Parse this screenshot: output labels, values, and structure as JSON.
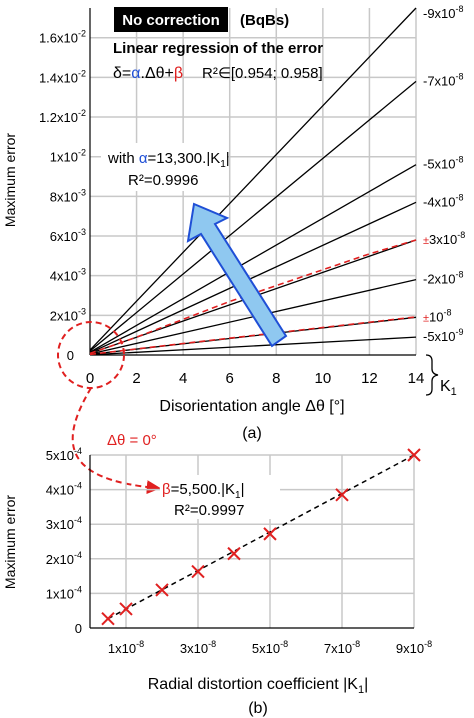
{
  "panel_a": {
    "chart_data": {
      "type": "line",
      "xlabel": "Disorientation angle Δθ [°]",
      "ylabel": "Maximum error",
      "xlim": [
        0,
        14
      ],
      "ylim": [
        0,
        0.0175
      ],
      "x_ticks": [
        {
          "value": 0,
          "label": "0"
        },
        {
          "value": 2,
          "label": "2"
        },
        {
          "value": 4,
          "label": "4"
        },
        {
          "value": 6,
          "label": "6"
        },
        {
          "value": 8,
          "label": "8"
        },
        {
          "value": 10,
          "label": "10"
        },
        {
          "value": 12,
          "label": "12"
        },
        {
          "value": 14,
          "label": "14"
        }
      ],
      "y_ticks": [
        {
          "value": 0,
          "base": "0",
          "exp": ""
        },
        {
          "value": 0.002,
          "base": "2x10",
          "exp": "-3"
        },
        {
          "value": 0.004,
          "base": "4x10",
          "exp": "-3"
        },
        {
          "value": 0.006,
          "base": "6x10",
          "exp": "-3"
        },
        {
          "value": 0.008,
          "base": "8x10",
          "exp": "-3"
        },
        {
          "value": 0.01,
          "base": "1x10",
          "exp": "-2"
        },
        {
          "value": 0.012,
          "base": "1.2x10",
          "exp": "-2"
        },
        {
          "value": 0.014,
          "base": "1.4x10",
          "exp": "-2"
        },
        {
          "value": 0.016,
          "base": "1.6x10",
          "exp": "-2"
        }
      ],
      "grid": true,
      "series": [
        {
          "label_base": "-9x10",
          "label_exp": "-8",
          "marker": "",
          "x": [
            0,
            14
          ],
          "y": [
            0.00025,
            0.0175
          ],
          "style": "solid"
        },
        {
          "label_base": "-7x10",
          "label_exp": "-8",
          "marker": "",
          "x": [
            0,
            14
          ],
          "y": [
            0.0002,
            0.0138
          ],
          "style": "solid"
        },
        {
          "label_base": "-5x10",
          "label_exp": "-8",
          "marker": "",
          "x": [
            0,
            14
          ],
          "y": [
            0.00014,
            0.0096
          ],
          "style": "solid"
        },
        {
          "label_base": "-4x10",
          "label_exp": "-8",
          "marker": "",
          "x": [
            0,
            14
          ],
          "y": [
            0.00011,
            0.0077
          ],
          "style": "solid"
        },
        {
          "label_base": "3x10",
          "label_exp": "-8",
          "marker": "±",
          "x": [
            0,
            14
          ],
          "y": [
            8e-05,
            0.0058
          ],
          "style": "solid"
        },
        {
          "label_base": "-2x10",
          "label_exp": "-8",
          "marker": "",
          "x": [
            0,
            14
          ],
          "y": [
            5e-05,
            0.0038
          ],
          "style": "solid"
        },
        {
          "label_base": "10",
          "label_exp": "-8",
          "marker": "±",
          "x": [
            0,
            14
          ],
          "y": [
            3e-05,
            0.0019
          ],
          "style": "solid"
        },
        {
          "label_base": "-5x10",
          "label_exp": "-9",
          "marker": "",
          "x": [
            0,
            14
          ],
          "y": [
            1e-05,
            0.0009
          ],
          "style": "solid"
        }
      ],
      "regression_curves": [
        {
          "x": [
            0,
            2,
            4,
            6,
            8,
            10,
            12,
            14
          ],
          "y": [
            8e-05,
            0.0009,
            0.0018,
            0.0027,
            0.0035,
            0.0043,
            0.0051,
            0.0058
          ]
        },
        {
          "x": [
            0,
            4,
            8,
            14
          ],
          "y": [
            3e-05,
            0.00058,
            0.00112,
            0.00192
          ]
        }
      ],
      "series_axis_label": "K",
      "series_axis_label_sub": "1"
    },
    "title_box": "No correction",
    "unit_note": "(BqBs)",
    "subtitle": "Linear regression of the error",
    "formula": {
      "delta": "δ=",
      "alpha": "α",
      "mid": ".Δθ+",
      "beta": "β",
      "r2": "R²∈[0.954; 0.958]"
    },
    "alpha_note": {
      "prefix": "with ",
      "alpha": "α",
      "rest": "=13,300.|K",
      "sub": "1",
      "end": "|",
      "r2": "R²=0.9996"
    },
    "caption": "(a)"
  },
  "panel_b": {
    "chart_data": {
      "type": "scatter",
      "xlabel": "Radial distortion coefficient |K",
      "xlabel_sub": "1",
      "xlabel_end": "|",
      "ylabel": "Maximum error",
      "xlim": [
        0,
        9e-08
      ],
      "ylim": [
        0,
        0.0005
      ],
      "x_ticks": [
        {
          "value": 1e-08,
          "base": "1x10",
          "exp": "-8"
        },
        {
          "value": 3e-08,
          "base": "3x10",
          "exp": "-8"
        },
        {
          "value": 5e-08,
          "base": "5x10",
          "exp": "-8"
        },
        {
          "value": 7e-08,
          "base": "7x10",
          "exp": "-8"
        },
        {
          "value": 9e-08,
          "base": "9x10",
          "exp": "-8"
        }
      ],
      "y_ticks": [
        {
          "value": 0,
          "base": "0",
          "exp": ""
        },
        {
          "value": 0.0001,
          "base": "1x10",
          "exp": "-4"
        },
        {
          "value": 0.0002,
          "base": "2x10",
          "exp": "-4"
        },
        {
          "value": 0.0003,
          "base": "3x10",
          "exp": "-4"
        },
        {
          "value": 0.0004,
          "base": "4x10",
          "exp": "-4"
        },
        {
          "value": 0.0005,
          "base": "5x10",
          "exp": "-4"
        }
      ],
      "grid": true,
      "points": {
        "x": [
          5e-09,
          1e-08,
          2e-08,
          3e-08,
          4e-08,
          5e-08,
          7e-08,
          9e-08
        ],
        "y": [
          2.7e-05,
          5.5e-05,
          0.00011,
          0.000163,
          0.000215,
          0.000272,
          0.000385,
          0.0005
        ]
      },
      "fit_line": {
        "x": [
          5e-09,
          9e-08
        ],
        "y": [
          2.7e-05,
          0.0005
        ]
      }
    },
    "beta_note": {
      "beta": "β",
      "rest": "=5,500.|K",
      "sub": "1",
      "end": "|",
      "r2": "R²=0.9997"
    },
    "caption": "(b)"
  },
  "link_annotation": "Δθ = 0°",
  "colors": {
    "accent_red": "#e02020",
    "alpha_blue": "#1f4fd6",
    "arrow_fill": "#8fc8f0",
    "arrow_stroke": "#1f4fd6",
    "grid": "#c8c8c8"
  }
}
